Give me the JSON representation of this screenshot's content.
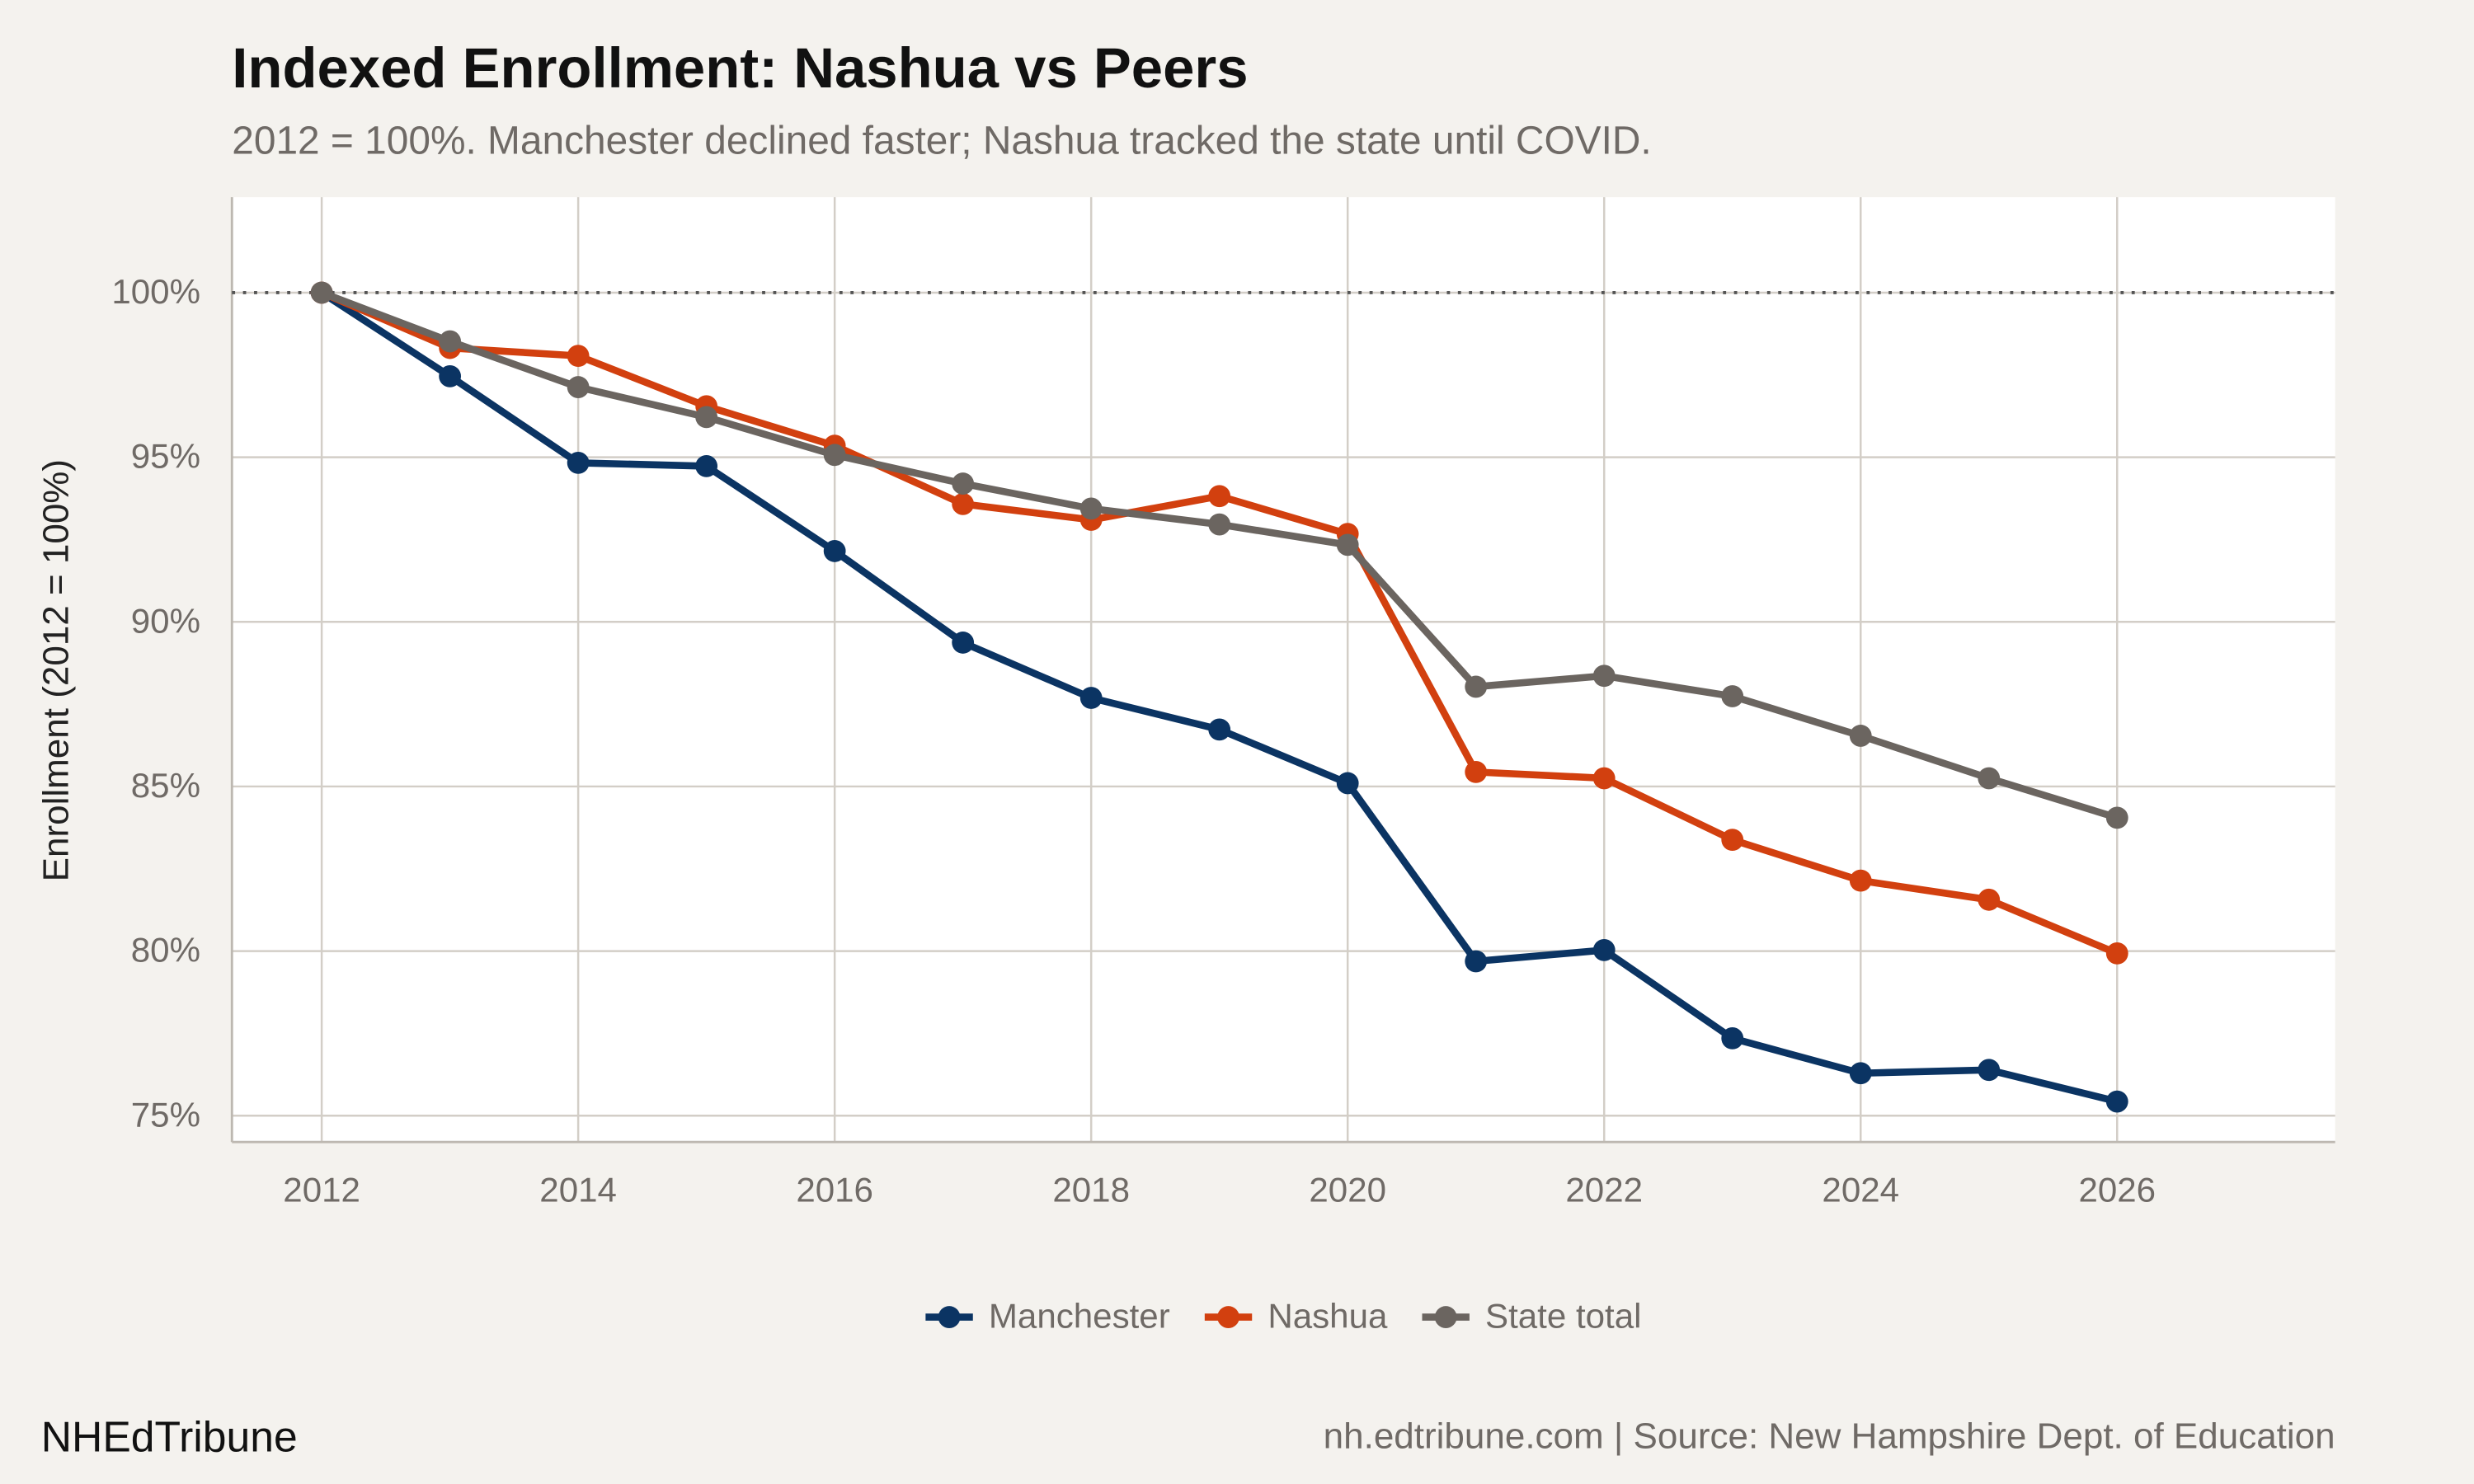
{
  "chart_data": {
    "type": "line",
    "title": "Indexed Enrollment: Nashua vs Peers",
    "subtitle": "2012 = 100%. Manchester declined faster; Nashua tracked the state until COVID.",
    "y_label": "Enrollment (2012 = 100%)",
    "brand": "NHEdTribune",
    "caption": "nh.edtribune.com | Source: New Hampshire Dept. of Education",
    "x": [
      2012,
      2013,
      2014,
      2015,
      2016,
      2017,
      2018,
      2019,
      2020,
      2021,
      2022,
      2023,
      2024,
      2025,
      2026
    ],
    "series": [
      {
        "name": "Manchester",
        "color": "#0b3463",
        "values": [
          100,
          97.46,
          94.83,
          94.73,
          92.15,
          89.37,
          87.69,
          86.73,
          85.1,
          79.69,
          80.03,
          77.35,
          76.29,
          76.39,
          75.43
        ]
      },
      {
        "name": "Nashua",
        "color": "#d2400f",
        "values": [
          100,
          98.32,
          98.08,
          96.55,
          95.35,
          93.58,
          93.1,
          93.82,
          92.67,
          85.44,
          85.25,
          83.38,
          82.14,
          81.56,
          79.93
        ]
      },
      {
        "name": "State total",
        "color": "#6b6560",
        "values": [
          100,
          98.52,
          97.13,
          96.22,
          95.07,
          94.2,
          93.44,
          92.96,
          92.34,
          88.03,
          88.36,
          87.74,
          86.54,
          85.25,
          84.05
        ]
      }
    ],
    "reference_line": 100,
    "xlim": [
      2011.3,
      2027.7
    ],
    "xticks": [
      2012,
      2014,
      2016,
      2018,
      2020,
      2022,
      2024,
      2026
    ],
    "ylim": [
      74.2,
      102.9
    ],
    "yticks": [
      {
        "value": 75,
        "label": "75%"
      },
      {
        "value": 80,
        "label": "80%"
      },
      {
        "value": 85,
        "label": "85%"
      },
      {
        "value": 90,
        "label": "90%"
      },
      {
        "value": 95,
        "label": "95%"
      },
      {
        "value": 100,
        "label": "100%"
      }
    ],
    "grid": true,
    "legend": "bottom"
  }
}
